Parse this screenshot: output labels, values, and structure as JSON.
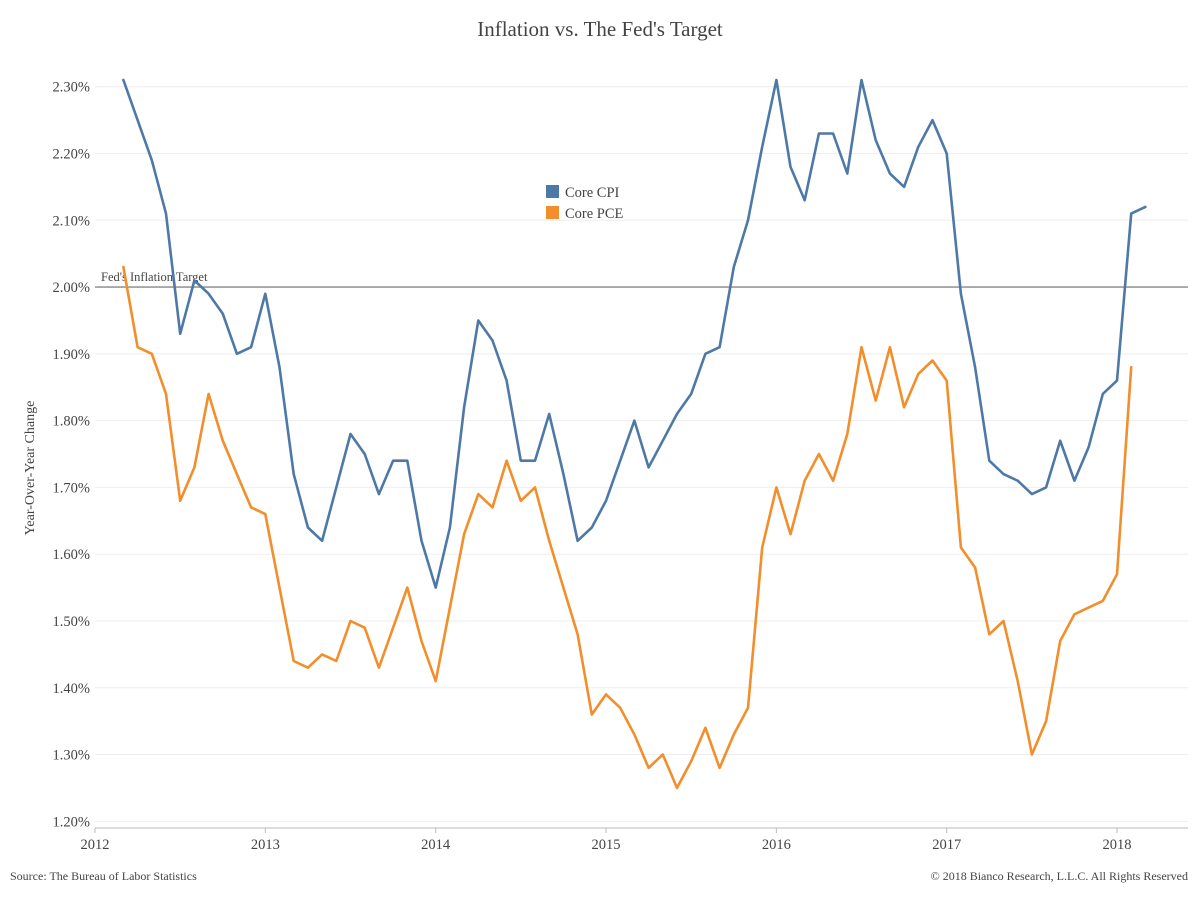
{
  "title": "Inflation vs. The Fed's Target",
  "ylabel": "Year-Over-Year Change",
  "source": "Source: The Bureau of Labor Statistics",
  "copyright": "© 2018 Bianco Research, L.L.C. All Rights Reserved",
  "target_label": "Fed's Inflation Target",
  "colors": {
    "core_cpi": "#4E79A7",
    "core_pce": "#F28E2B",
    "target_line": "#999999",
    "grid": "#eeeeee"
  },
  "chart_data": {
    "type": "line",
    "title": "Inflation vs. The Fed's Target",
    "ylabel": "Year-Over-Year Change",
    "xlabel": "",
    "ylim": [
      1.19,
      2.34
    ],
    "xlim": [
      "2012-01",
      "2018-06"
    ],
    "y_ticks": [
      "1.20%",
      "1.30%",
      "1.40%",
      "1.50%",
      "1.60%",
      "1.70%",
      "1.80%",
      "1.90%",
      "2.00%",
      "2.10%",
      "2.20%",
      "2.30%"
    ],
    "y_tick_values": [
      1.2,
      1.3,
      1.4,
      1.5,
      1.6,
      1.7,
      1.8,
      1.9,
      2.0,
      2.1,
      2.2,
      2.3
    ],
    "x_ticks": [
      "2012",
      "2013",
      "2014",
      "2015",
      "2016",
      "2017",
      "2018"
    ],
    "legend_position": "top-center",
    "grid": true,
    "reference_line": {
      "value": 2.0,
      "label": "Fed's Inflation Target"
    },
    "x_start": "2012-03",
    "x_step": "1 month",
    "series": [
      {
        "name": "Core CPI",
        "color": "#4E79A7",
        "values": [
          2.31,
          2.25,
          2.19,
          2.11,
          1.93,
          2.01,
          1.99,
          1.96,
          1.9,
          1.91,
          1.99,
          1.88,
          1.72,
          1.64,
          1.62,
          1.7,
          1.78,
          1.75,
          1.69,
          1.74,
          1.74,
          1.62,
          1.55,
          1.64,
          1.82,
          1.95,
          1.92,
          1.86,
          1.74,
          1.74,
          1.81,
          1.72,
          1.62,
          1.64,
          1.68,
          1.74,
          1.8,
          1.73,
          1.77,
          1.81,
          1.84,
          1.9,
          1.91,
          2.03,
          2.1,
          2.21,
          2.31,
          2.18,
          2.13,
          2.23,
          2.23,
          2.17,
          2.31,
          2.22,
          2.17,
          2.15,
          2.21,
          2.25,
          2.2,
          1.99,
          1.88,
          1.74,
          1.72,
          1.71,
          1.69,
          1.7,
          1.77,
          1.71,
          1.76,
          1.84,
          1.86,
          2.11,
          2.12
        ]
      },
      {
        "name": "Core PCE",
        "color": "#F28E2B",
        "values": [
          2.03,
          1.91,
          1.9,
          1.84,
          1.68,
          1.73,
          1.84,
          1.77,
          1.72,
          1.67,
          1.66,
          1.55,
          1.44,
          1.43,
          1.45,
          1.44,
          1.5,
          1.49,
          1.43,
          1.49,
          1.55,
          1.47,
          1.41,
          1.52,
          1.63,
          1.69,
          1.67,
          1.74,
          1.68,
          1.7,
          1.62,
          1.55,
          1.48,
          1.36,
          1.39,
          1.37,
          1.33,
          1.28,
          1.3,
          1.25,
          1.29,
          1.34,
          1.28,
          1.33,
          1.37,
          1.61,
          1.7,
          1.63,
          1.71,
          1.75,
          1.71,
          1.78,
          1.91,
          1.83,
          1.91,
          1.82,
          1.87,
          1.89,
          1.86,
          1.61,
          1.58,
          1.48,
          1.5,
          1.41,
          1.3,
          1.35,
          1.47,
          1.51,
          1.52,
          1.53,
          1.57,
          1.88
        ]
      }
    ]
  }
}
